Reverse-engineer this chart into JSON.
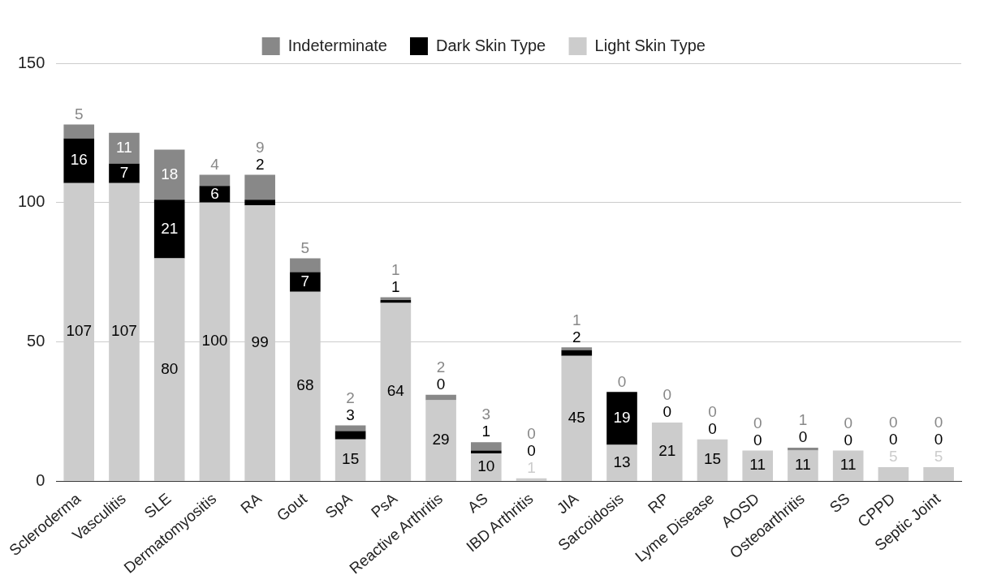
{
  "chart_data": {
    "type": "bar",
    "stacked": true,
    "categories": [
      "Scleroderma",
      "Vasculitis",
      "SLE",
      "Dermatomyositis",
      "RA",
      "Gout",
      "SpA",
      "PsA",
      "Reactive Arthritis",
      "AS",
      "IBD Arthritis",
      "JIA",
      "Sarcoidosis",
      "RP",
      "Lyme Disease",
      "AOSD",
      "Osteoarthritis",
      "SS",
      "CPPD",
      "Septic Joint"
    ],
    "series": [
      {
        "name": "Light Skin Type",
        "color": "#cccccc",
        "values": [
          107,
          107,
          80,
          100,
          99,
          68,
          15,
          64,
          29,
          10,
          1,
          45,
          13,
          21,
          15,
          11,
          11,
          11,
          5,
          5
        ]
      },
      {
        "name": "Dark Skin Type",
        "color": "#000000",
        "values": [
          16,
          7,
          21,
          6,
          2,
          7,
          3,
          1,
          0,
          1,
          0,
          2,
          19,
          0,
          0,
          0,
          0,
          0,
          0,
          0
        ]
      },
      {
        "name": "Indeterminate",
        "color": "#888888",
        "values": [
          5,
          11,
          18,
          4,
          9,
          5,
          2,
          1,
          2,
          3,
          0,
          1,
          0,
          0,
          0,
          0,
          1,
          0,
          0,
          0
        ]
      }
    ],
    "ylim": [
      0,
      150
    ],
    "yticks": [
      0,
      50,
      100,
      150
    ],
    "grid": "y",
    "legend": "top",
    "data_labels": true
  }
}
